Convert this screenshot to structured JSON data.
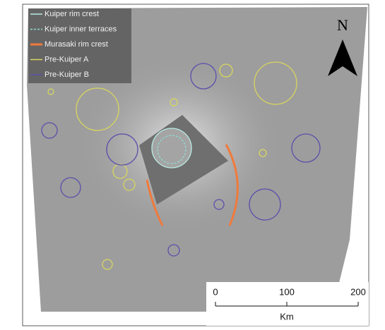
{
  "legend": [
    {
      "label": "Kuiper rim crest",
      "color": "#b8ece4",
      "style": "solid"
    },
    {
      "label": "Kuiper inner terraces",
      "color": "#8fdcd2",
      "style": "dashed"
    },
    {
      "label": "Murasaki rim crest",
      "color": "#f07a3c",
      "style": "thick"
    },
    {
      "label": "Pre-Kuiper A",
      "color": "#d8d65e",
      "style": "solid"
    },
    {
      "label": "Pre-Kuiper B",
      "color": "#5a50aa",
      "style": "solid"
    }
  ],
  "north": "N",
  "scale_bar": {
    "ticks": [
      0,
      100,
      200
    ],
    "unit": "Km"
  }
}
